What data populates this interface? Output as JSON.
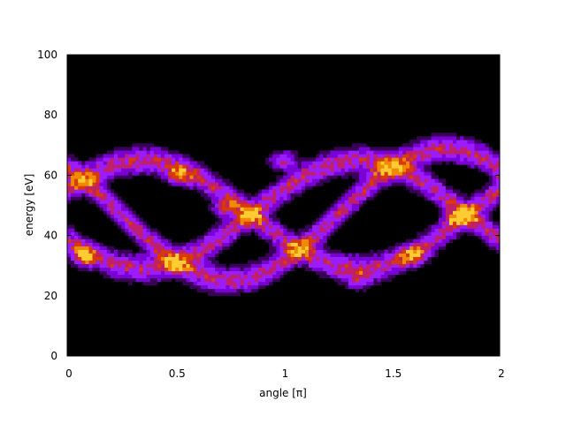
{
  "chart_data": {
    "type": "heatmap",
    "xlabel": "angle [π]",
    "ylabel": "energy [eV]",
    "xlim": [
      0,
      2
    ],
    "ylim": [
      0,
      100
    ],
    "x_ticks": [
      "0",
      "0.5",
      "1",
      "1.5",
      "2"
    ],
    "x_tick_values": [
      0,
      0.5,
      1,
      1.5,
      2
    ],
    "y_ticks": [
      "0",
      "20",
      "40",
      "60",
      "80",
      "100"
    ],
    "y_tick_values": [
      0,
      20,
      40,
      60,
      80,
      100
    ],
    "grid": false,
    "background_color": "#000000",
    "colormap": [
      "#000000",
      "#3a0058",
      "#7a00d6",
      "#9b1cff",
      "#c0206a",
      "#d83a00",
      "#f08a00",
      "#ffcc33"
    ],
    "bands": [
      {
        "center": 47,
        "amplitude": 18,
        "phase": 0.35
      },
      {
        "center": 47,
        "amplitude": 18,
        "phase": 1.35
      },
      {
        "center": 47,
        "amplitude": 22,
        "phase": 1.75
      }
    ],
    "hotspots": [
      {
        "x": 0.08,
        "y": 33,
        "intensity": 1.0
      },
      {
        "x": 0.52,
        "y": 60,
        "intensity": 0.9
      },
      {
        "x": 0.73,
        "y": 49,
        "intensity": 0.85
      },
      {
        "x": 1.0,
        "y": 65,
        "intensity": 0.9
      },
      {
        "x": 1.6,
        "y": 33,
        "intensity": 0.9
      },
      {
        "x": 1.8,
        "y": 46,
        "intensity": 0.7
      },
      {
        "x": 1.35,
        "y": 25,
        "intensity": 0.55
      }
    ]
  }
}
